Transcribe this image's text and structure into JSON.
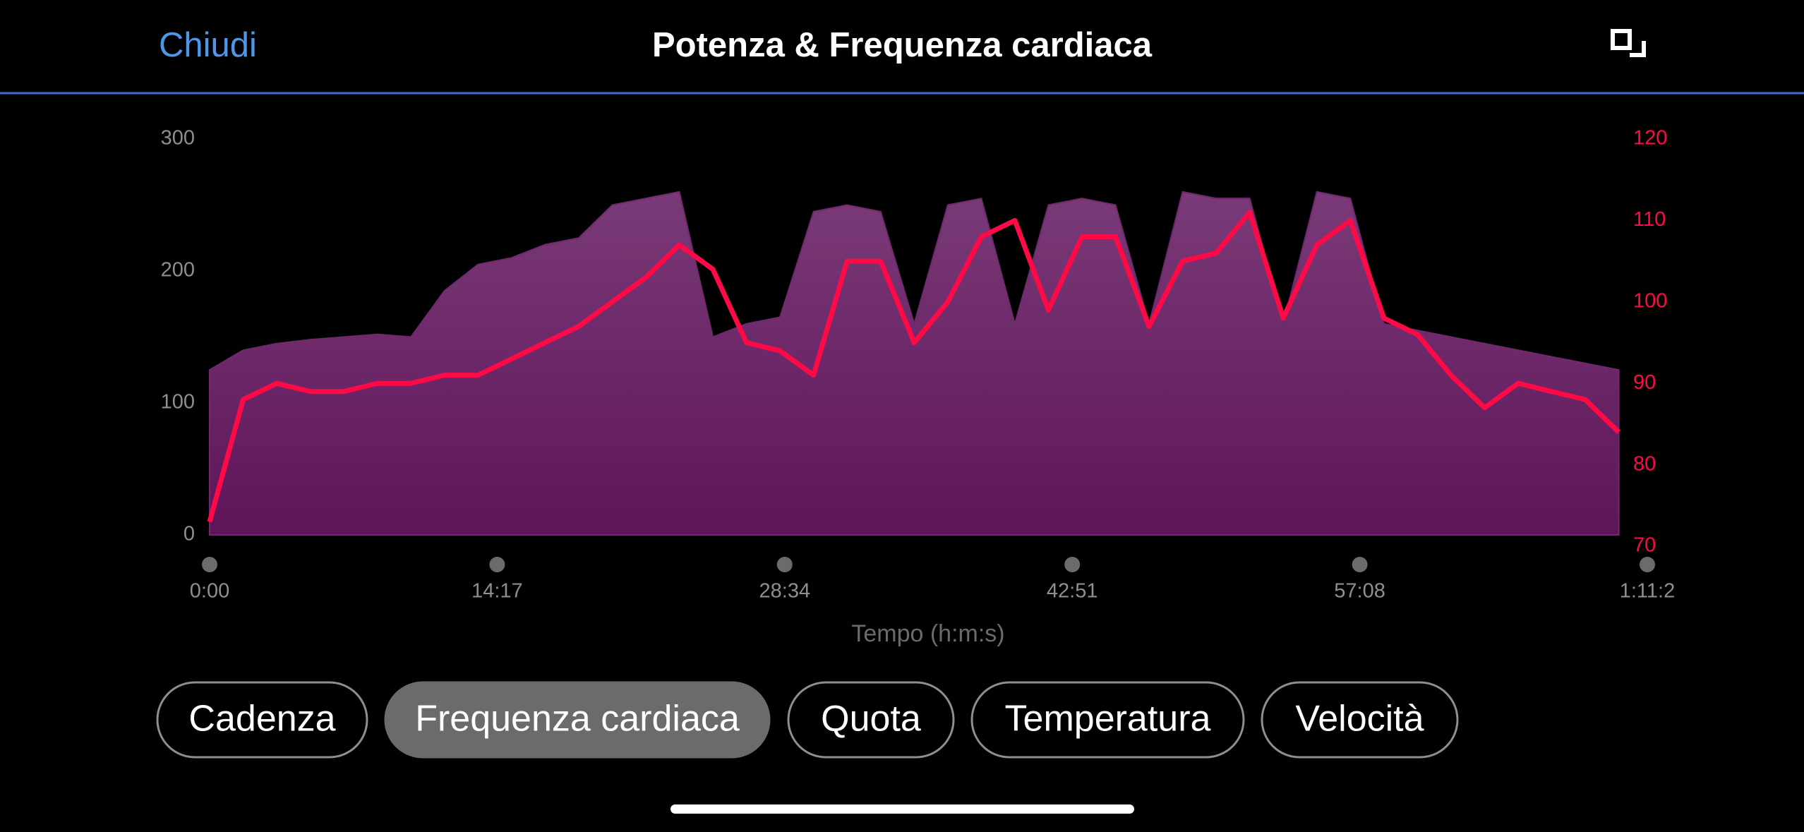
{
  "header": {
    "close": "Chiudi",
    "title": "Potenza & Frequenza cardiaca"
  },
  "chart_data": {
    "type": "area-line",
    "x_label": "Tempo (h:m:s)",
    "x": [
      0,
      100,
      200,
      300,
      400,
      500,
      600,
      700,
      800,
      900,
      1000,
      1100,
      1200,
      1300,
      1400,
      1500,
      1600,
      1700,
      1800,
      1900,
      2000,
      2100,
      2200,
      2300,
      2400,
      2500,
      2600,
      2700,
      2800,
      2900,
      3000,
      3100,
      3200,
      3300,
      3400,
      3500,
      3600,
      3700,
      3800,
      3900,
      4000,
      4100,
      4200
    ],
    "series": [
      {
        "name": "Potenza",
        "type": "area",
        "color": "#6e2a6c",
        "axis": "y",
        "values": [
          125,
          140,
          145,
          148,
          150,
          152,
          150,
          185,
          205,
          210,
          220,
          225,
          250,
          255,
          260,
          150,
          160,
          165,
          245,
          250,
          245,
          160,
          250,
          255,
          160,
          250,
          255,
          250,
          160,
          260,
          255,
          255,
          160,
          260,
          255,
          160,
          155,
          150,
          145,
          140,
          135,
          130,
          125
        ]
      },
      {
        "name": "Frequenza cardiaca",
        "type": "line",
        "color": "#ff0a47",
        "axis": "y2",
        "values": [
          73,
          88,
          90,
          89,
          89,
          90,
          90,
          91,
          91,
          93,
          95,
          97,
          100,
          103,
          107,
          104,
          95,
          94,
          91,
          105,
          105,
          95,
          100,
          108,
          110,
          99,
          108,
          108,
          97,
          105,
          106,
          111,
          98,
          107,
          110,
          98,
          96,
          91,
          87,
          90,
          89,
          88,
          84
        ]
      }
    ],
    "xlim": [
      0,
      4285
    ],
    "xticks": [
      {
        "value": 0,
        "label": "0:00"
      },
      {
        "value": 857,
        "label": "14:17"
      },
      {
        "value": 1714,
        "label": "28:34"
      },
      {
        "value": 2571,
        "label": "42:51"
      },
      {
        "value": 3428,
        "label": "57:08"
      },
      {
        "value": 4285,
        "label": "1:11:2"
      }
    ],
    "ylim": [
      0,
      300
    ],
    "yticks": [
      0,
      100,
      200,
      300
    ],
    "y2lim": [
      70,
      120
    ],
    "y2ticks": [
      70,
      80,
      90,
      100,
      110,
      120
    ]
  },
  "buttons": [
    {
      "label": "Cadenza",
      "selected": false
    },
    {
      "label": "Frequenza cardiaca",
      "selected": true
    },
    {
      "label": "Quota",
      "selected": false
    },
    {
      "label": "Temperatura",
      "selected": false
    },
    {
      "label": "Velocità",
      "selected": false
    }
  ]
}
